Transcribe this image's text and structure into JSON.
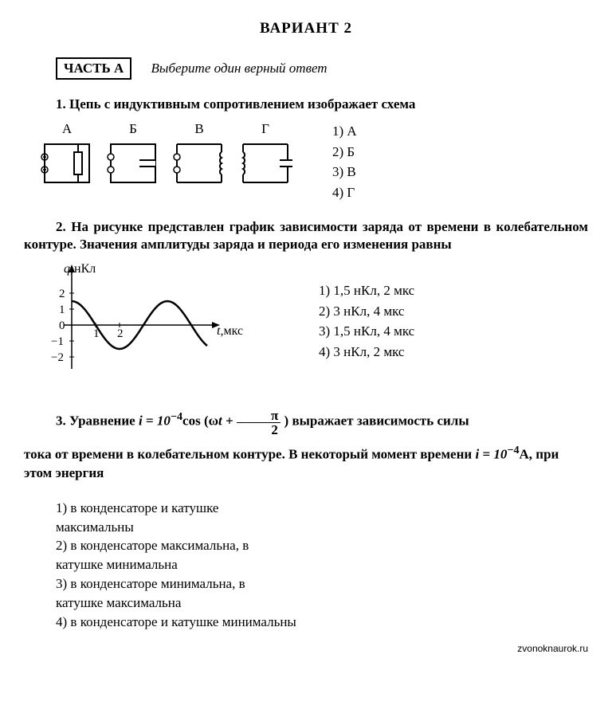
{
  "title": "ВАРИАНТ  2",
  "part": {
    "label": "ЧАСТЬ А",
    "instruction": "Выберите один верный ответ"
  },
  "q1": {
    "text": "1. Цепь с индуктивным сопротивлением изображает схема",
    "labels": [
      "А",
      "Б",
      "В",
      "Г"
    ],
    "answers": [
      "1) А",
      "2) Б",
      "3) В",
      "4) Г"
    ]
  },
  "q2": {
    "text": "2. На рисунке представлен график зависимости заряда от времени в колебательном контуре. Значения амплитуды заряда и периода его изменения равны",
    "chart": {
      "y_label": "q,",
      "y_unit": "нКл",
      "x_label": "t,мкс",
      "y_ticks": [
        -2,
        -1,
        0,
        1,
        2
      ],
      "x_ticks": [
        1,
        2
      ],
      "amplitude": 1.5,
      "period_units": 4,
      "stroke": "#000000"
    },
    "answers": [
      "1) 1,5 нКл, 2 мкс",
      "2) 3 нКл, 4 мкс",
      "3) 1,5 нКл, 4 мкс",
      "4) 3 нКл, 2 мкс"
    ]
  },
  "q3": {
    "prefix": "3. Уравнение",
    "eq_lhs": "i = 10",
    "eq_exp": "−4",
    "eq_mid1": "cos (ω",
    "eq_mid2": "t + ",
    "frac_num": "π",
    "frac_den": "2",
    "eq_tail": " ) выражает зависимость силы",
    "line2a": "тока от времени в колебательном контуре. В некоторый момент времени  ",
    "line2b": "i = 10",
    "line2exp": "−4",
    "line2c": "А, при этом энергия",
    "answers": [
      "1) в конденсаторе и катушке максимальны",
      "2) в конденсаторе максимальна, в катушке минимальна",
      "3) в конденсаторе минимальна, в катушке максимальна",
      "4) в конденсаторе и катушке минимальны"
    ]
  },
  "footer": "zvonoknaurok.ru"
}
